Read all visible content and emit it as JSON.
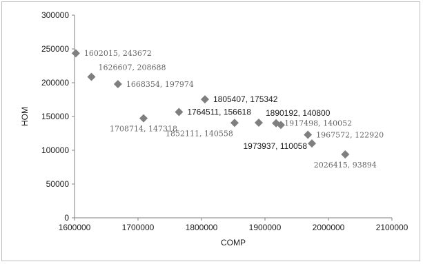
{
  "chart_data": {
    "type": "scatter",
    "xlabel": "COMP",
    "ylabel": "HOM",
    "xlim": [
      1600000,
      2100000
    ],
    "ylim": [
      0,
      300000
    ],
    "x_ticks": [
      "1600000",
      "1700000",
      "1800000",
      "1900000",
      "2000000",
      "2100000"
    ],
    "y_ticks": [
      "0",
      "50000",
      "100000",
      "150000",
      "200000",
      "250000",
      "300000"
    ],
    "grid": false,
    "marker": "diamond",
    "marker_color": "#7f7f7f",
    "points": [
      {
        "x": 1602015,
        "y": 243672,
        "label": "1602015, 243672",
        "label_pos": "right",
        "label_style": "serif"
      },
      {
        "x": 1626607,
        "y": 208688,
        "label": "1626607, 208688",
        "label_pos": "above-right",
        "label_style": "serif"
      },
      {
        "x": 1668354,
        "y": 197974,
        "label": "1668354, 197974",
        "label_pos": "right",
        "label_style": "serif"
      },
      {
        "x": 1708714,
        "y": 147318,
        "label": "1708714, 147318",
        "label_pos": "below",
        "label_style": "serif"
      },
      {
        "x": 1764511,
        "y": 156618,
        "label": "1764511, 156618",
        "label_pos": "right",
        "label_style": "sans"
      },
      {
        "x": 1805407,
        "y": 175342,
        "label": "1805407, 175342",
        "label_pos": "right",
        "label_style": "sans"
      },
      {
        "x": 1852111,
        "y": 140558,
        "label": "1852111, 140558",
        "label_pos": "below-left",
        "label_style": "serif"
      },
      {
        "x": 1890192,
        "y": 140800,
        "label": "1890192, 140800",
        "label_pos": "above-right",
        "label_style": "sans"
      },
      {
        "x": 1917498,
        "y": 140052,
        "label": "1917498, 140052",
        "label_pos": "right",
        "label_style": "serif"
      },
      {
        "x": 1925000,
        "y": 137500,
        "label": "",
        "label_pos": "none",
        "label_style": "none"
      },
      {
        "x": 1967572,
        "y": 122920,
        "label": "1967572, 122920",
        "label_pos": "right",
        "label_style": "serif"
      },
      {
        "x": 1973937,
        "y": 110058,
        "label": "1973937, 110058",
        "label_pos": "left",
        "label_style": "sans"
      },
      {
        "x": 2026415,
        "y": 93894,
        "label": "2026415, 93894",
        "label_pos": "below",
        "label_style": "serif"
      }
    ]
  }
}
